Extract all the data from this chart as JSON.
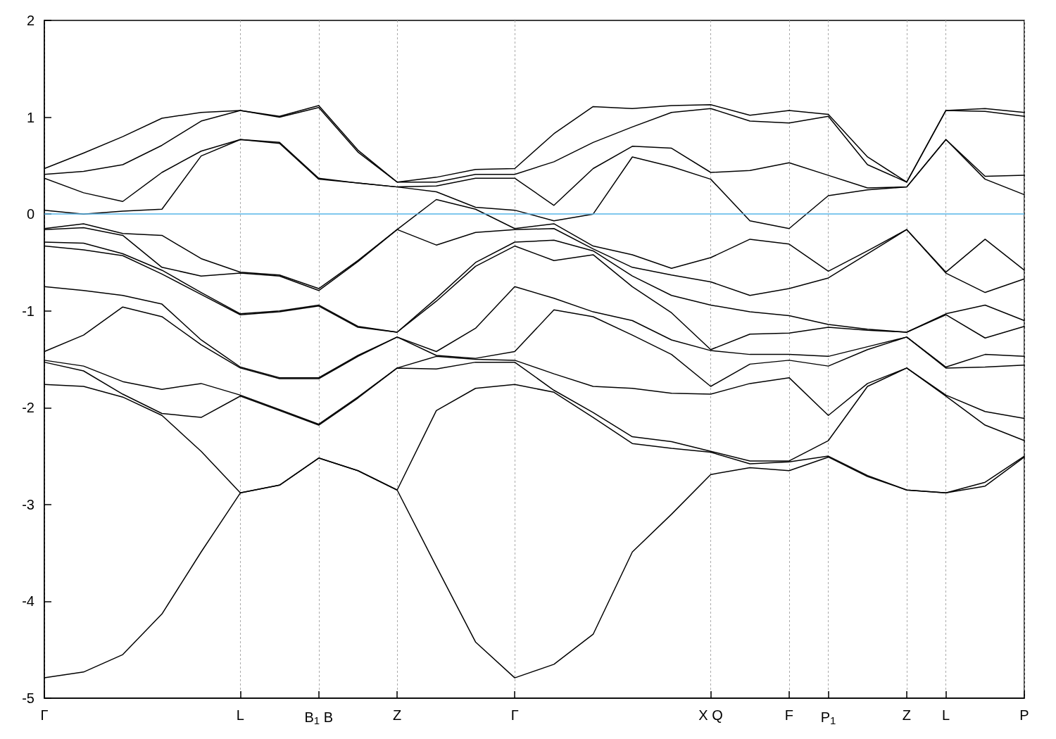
{
  "chart_data": {
    "type": "line",
    "categories": [
      "Γ",
      null,
      null,
      null,
      null,
      "L",
      null,
      "B$_{1}$ B",
      null,
      "Z",
      null,
      null,
      "Γ",
      null,
      null,
      null,
      null,
      "X Q",
      null,
      "F",
      "P$_{1}$",
      null,
      "Z",
      "L",
      null,
      "P"
    ],
    "series": [
      {
        "color": "#000000",
        "values": [
          0.47,
          0.63,
          0.8,
          0.99,
          1.05,
          1.07,
          1.01,
          1.12,
          0.66,
          0.33,
          0.38,
          0.46,
          0.47,
          0.83,
          1.11,
          1.09,
          1.12,
          1.13,
          1.02,
          1.07,
          1.03,
          0.59,
          0.33,
          1.07,
          1.09,
          1.05
        ]
      },
      {
        "color": "#000000",
        "values": [
          0.41,
          0.44,
          0.51,
          0.71,
          0.96,
          1.07,
          1.0,
          1.1,
          0.64,
          0.33,
          0.33,
          0.41,
          0.41,
          0.54,
          0.74,
          0.9,
          1.05,
          1.09,
          0.96,
          0.94,
          1.01,
          0.51,
          0.33,
          1.07,
          1.06,
          1.01
        ]
      },
      {
        "color": "#000000",
        "values": [
          0.37,
          0.22,
          0.13,
          0.43,
          0.65,
          0.77,
          0.74,
          0.37,
          0.32,
          0.28,
          0.29,
          0.37,
          0.37,
          0.09,
          0.47,
          0.7,
          0.68,
          0.43,
          0.45,
          0.53,
          0.4,
          0.27,
          0.28,
          0.77,
          0.39,
          0.4
        ]
      },
      {
        "color": "#000000",
        "values": [
          0.04,
          0.0,
          0.03,
          0.05,
          0.6,
          0.77,
          0.73,
          0.36,
          0.32,
          0.28,
          0.23,
          0.07,
          0.04,
          -0.07,
          0.0,
          0.59,
          0.49,
          0.36,
          -0.07,
          -0.15,
          0.19,
          0.25,
          0.28,
          0.77,
          0.36,
          0.2
        ]
      },
      {
        "color": "#000000",
        "values": [
          -0.15,
          -0.1,
          -0.2,
          -0.22,
          -0.46,
          -0.6,
          -0.63,
          -0.77,
          -0.48,
          -0.16,
          0.15,
          0.05,
          -0.15,
          -0.1,
          -0.33,
          -0.42,
          -0.56,
          -0.45,
          -0.26,
          -0.31,
          -0.59,
          -0.38,
          -0.16,
          -0.6,
          -0.26,
          -0.58
        ]
      },
      {
        "color": "#000000",
        "values": [
          -0.16,
          -0.14,
          -0.22,
          -0.55,
          -0.64,
          -0.61,
          -0.64,
          -0.79,
          -0.49,
          -0.16,
          -0.32,
          -0.19,
          -0.16,
          -0.15,
          -0.36,
          -0.55,
          -0.63,
          -0.7,
          -0.84,
          -0.77,
          -0.66,
          -0.41,
          -0.16,
          -0.61,
          -0.81,
          -0.67
        ]
      },
      {
        "color": "#000000",
        "values": [
          -0.29,
          -0.3,
          -0.41,
          -0.58,
          -0.81,
          -1.03,
          -1.0,
          -0.94,
          -1.16,
          -1.22,
          -0.87,
          -0.5,
          -0.29,
          -0.27,
          -0.38,
          -0.64,
          -0.84,
          -0.94,
          -1.01,
          -1.05,
          -1.14,
          -1.19,
          -1.22,
          -1.03,
          -0.94,
          -1.1
        ]
      },
      {
        "color": "#000000",
        "values": [
          -0.33,
          -0.37,
          -0.43,
          -0.62,
          -0.83,
          -1.04,
          -1.01,
          -0.95,
          -1.17,
          -1.22,
          -0.9,
          -0.54,
          -0.33,
          -0.48,
          -0.42,
          -0.75,
          -1.02,
          -1.4,
          -1.24,
          -1.23,
          -1.17,
          -1.2,
          -1.22,
          -1.04,
          -1.28,
          -1.16
        ]
      },
      {
        "color": "#000000",
        "values": [
          -0.75,
          -0.79,
          -0.84,
          -0.93,
          -1.3,
          -1.58,
          -1.69,
          -1.69,
          -1.46,
          -1.27,
          -1.42,
          -1.18,
          -0.75,
          -0.87,
          -1.01,
          -1.1,
          -1.3,
          -1.41,
          -1.45,
          -1.45,
          -1.47,
          -1.37,
          -1.27,
          -1.58,
          -1.45,
          -1.47
        ]
      },
      {
        "color": "#000000",
        "values": [
          -1.42,
          -1.25,
          -0.96,
          -1.06,
          -1.35,
          -1.59,
          -1.7,
          -1.7,
          -1.47,
          -1.27,
          -1.46,
          -1.49,
          -1.42,
          -0.99,
          -1.06,
          -1.25,
          -1.45,
          -1.78,
          -1.55,
          -1.51,
          -1.57,
          -1.4,
          -1.27,
          -1.59,
          -1.58,
          -1.56
        ]
      },
      {
        "color": "#000000",
        "values": [
          -1.51,
          -1.57,
          -1.73,
          -1.81,
          -1.75,
          -1.87,
          -2.02,
          -2.17,
          -1.89,
          -1.59,
          -1.47,
          -1.5,
          -1.51,
          -1.65,
          -1.78,
          -1.8,
          -1.85,
          -1.86,
          -1.75,
          -1.69,
          -2.08,
          -1.75,
          -1.59,
          -1.87,
          -2.04,
          -2.11
        ]
      },
      {
        "color": "#000000",
        "values": [
          -1.53,
          -1.62,
          -1.86,
          -2.06,
          -2.1,
          -1.88,
          -2.03,
          -2.18,
          -1.9,
          -1.59,
          -1.6,
          -1.53,
          -1.53,
          -1.82,
          -2.05,
          -2.3,
          -2.35,
          -2.45,
          -2.55,
          -2.55,
          -2.34,
          -1.78,
          -1.59,
          -1.88,
          -2.18,
          -2.34
        ]
      },
      {
        "color": "#000000",
        "values": [
          -1.76,
          -1.78,
          -1.89,
          -2.08,
          -2.45,
          -2.88,
          -2.8,
          -2.52,
          -2.65,
          -2.85,
          -2.03,
          -1.8,
          -1.76,
          -1.84,
          -2.1,
          -2.37,
          -2.42,
          -2.46,
          -2.58,
          -2.56,
          -2.5,
          -2.7,
          -2.85,
          -2.88,
          -2.77,
          -2.5
        ]
      },
      {
        "color": "#000000",
        "values": [
          -4.79,
          -4.73,
          -4.55,
          -4.13,
          -3.49,
          -2.88,
          -2.8,
          -2.52,
          -2.65,
          -2.85,
          -3.64,
          -4.42,
          -4.79,
          -4.65,
          -4.34,
          -3.49,
          -3.1,
          -2.69,
          -2.62,
          -2.65,
          -2.51,
          -2.71,
          -2.85,
          -2.88,
          -2.81,
          -2.51
        ]
      }
    ],
    "ylim": [
      -5,
      2
    ],
    "yticks": [
      -5,
      -4,
      -3,
      -2,
      -1,
      0,
      1,
      2
    ],
    "grid": "x",
    "marker": "none",
    "line_style": "solid",
    "ref_lines": [
      {
        "axis": "y",
        "value": 0,
        "color": "#56b4e9"
      }
    ]
  }
}
